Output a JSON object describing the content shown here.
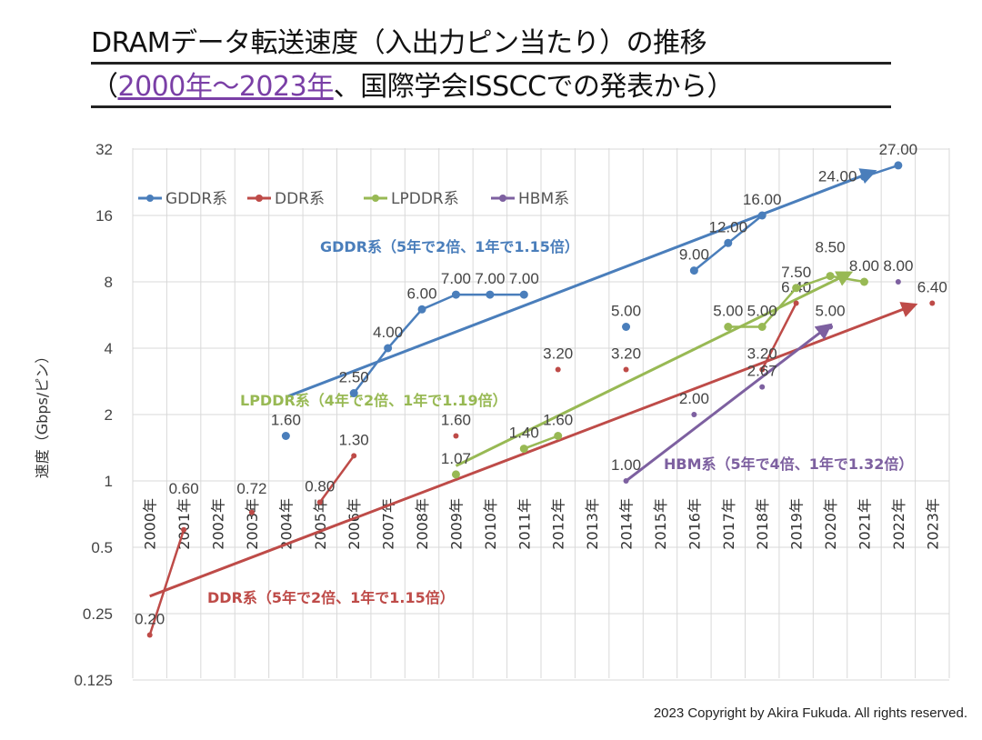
{
  "title_line1": "DRAMデータ転送速度（入出力ピン当たり）の推移",
  "title_line2_open": "（",
  "title_line2_range": "2000年～2023年",
  "title_line2_rest": "、国際学会ISSCCでの発表から）",
  "copyright": "2023 Copyright by Akira Fukuda. All rights reserved.",
  "chart_data": {
    "type": "line",
    "ylabel": "速度（Gbps/ピン）",
    "yscale": "log2",
    "ylim": [
      0.125,
      32
    ],
    "yticks": [
      "0.125",
      "0.25",
      "0.5",
      "1",
      "2",
      "4",
      "8",
      "16",
      "32"
    ],
    "ytick_values": [
      0.125,
      0.25,
      0.5,
      1,
      2,
      4,
      8,
      16,
      32
    ],
    "categories": [
      "2000年",
      "2001年",
      "2002年",
      "2003年",
      "2004年",
      "2005年",
      "2006年",
      "2007年",
      "2008年",
      "2009年",
      "2010年",
      "2011年",
      "2012年",
      "2013年",
      "2014年",
      "2015年",
      "2016年",
      "2017年",
      "2018年",
      "2019年",
      "2020年",
      "2021年",
      "2022年",
      "2023年"
    ],
    "grid": true,
    "legend_position": "top-left",
    "series": [
      {
        "name": "GDDR系",
        "color": "#4a7ebb",
        "groups": [
          [
            {
              "x": 2004,
              "y": 1.6,
              "label": "1.60"
            }
          ],
          [
            {
              "x": 2006,
              "y": 2.5,
              "label": "2.50"
            },
            {
              "x": 2007,
              "y": 4.0,
              "label": "4.00"
            },
            {
              "x": 2008,
              "y": 6.0,
              "label": "6.00"
            },
            {
              "x": 2009,
              "y": 7.0,
              "label": "7.00"
            },
            {
              "x": 2010,
              "y": 7.0,
              "label": "7.00"
            },
            {
              "x": 2011,
              "y": 7.0,
              "label": "7.00"
            }
          ],
          [
            {
              "x": 2014,
              "y": 5.0,
              "label": "5.00"
            }
          ],
          [
            {
              "x": 2016,
              "y": 9.0,
              "label": "9.00"
            },
            {
              "x": 2017,
              "y": 12.0,
              "label": "12.00"
            },
            {
              "x": 2018,
              "y": 16.0,
              "label": "16.00"
            }
          ],
          [
            {
              "x": 2021,
              "y": 24.0,
              "label": "24.00"
            },
            {
              "x": 2022,
              "y": 27.0,
              "label": "27.00"
            }
          ]
        ]
      },
      {
        "name": "DDR系",
        "color": "#be4b48",
        "groups": [
          [
            {
              "x": 2000,
              "y": 0.2,
              "label": "0.20"
            },
            {
              "x": 2001,
              "y": 0.6,
              "label": "0.60"
            }
          ],
          [
            {
              "x": 2003,
              "y": 0.72,
              "label": "0.72"
            }
          ],
          [
            {
              "x": 2005,
              "y": 0.8,
              "label": "0.80"
            },
            {
              "x": 2006,
              "y": 1.3,
              "label": "1.30"
            }
          ],
          [
            {
              "x": 2009,
              "y": 1.6,
              "label": "1.60"
            }
          ],
          [
            {
              "x": 2012,
              "y": 3.2,
              "label": "3.20"
            }
          ],
          [
            {
              "x": 2014,
              "y": 3.2,
              "label": "3.20"
            }
          ],
          [
            {
              "x": 2018,
              "y": 3.2,
              "label": "3.20"
            },
            {
              "x": 2019,
              "y": 6.4,
              "label": "6.40"
            }
          ],
          [
            {
              "x": 2023,
              "y": 6.4,
              "label": "6.40"
            }
          ]
        ]
      },
      {
        "name": "LPDDR系",
        "color": "#98b954",
        "groups": [
          [
            {
              "x": 2009,
              "y": 1.07,
              "label": "1.07"
            }
          ],
          [
            {
              "x": 2011,
              "y": 1.4,
              "label": "1.40"
            },
            {
              "x": 2012,
              "y": 1.6,
              "label": "1.60"
            }
          ],
          [
            {
              "x": 2017,
              "y": 5.0,
              "label": "5.00"
            },
            {
              "x": 2018,
              "y": 5.0,
              "label": "5.00"
            },
            {
              "x": 2019,
              "y": 7.5,
              "label": "7.50"
            },
            {
              "x": 2020,
              "y": 8.5,
              "label": "8.50"
            },
            {
              "x": 2021,
              "y": 8.0,
              "label": "8.00"
            }
          ]
        ]
      },
      {
        "name": "HBM系",
        "color": "#7d60a0",
        "groups": [
          [
            {
              "x": 2014,
              "y": 1.0,
              "label": "1.00"
            }
          ],
          [
            {
              "x": 2016,
              "y": 2.0,
              "label": "2.00"
            }
          ],
          [
            {
              "x": 2018,
              "y": 2.67,
              "label": "2.67"
            }
          ],
          [
            {
              "x": 2020,
              "y": 5.0,
              "label": "5.00"
            }
          ],
          [
            {
              "x": 2022,
              "y": 8.0,
              "label": "8.00"
            }
          ]
        ]
      }
    ],
    "trends": [
      {
        "series": "GDDR系",
        "label": "GDDR系（5年で2倍、1年で1.15倍）",
        "from": [
          2004,
          2.4
        ],
        "to": [
          2021.3,
          25.4
        ]
      },
      {
        "series": "DDR系",
        "label": "DDR系（5年で2倍、1年で1.15倍）",
        "from": [
          2000,
          0.3
        ],
        "to": [
          2022.5,
          6.3
        ]
      },
      {
        "series": "LPDDR系",
        "label": "LPDDR系（4年で2倍、1年で1.19倍）",
        "from": [
          2009,
          1.17
        ],
        "to": [
          2020.6,
          8.8
        ]
      },
      {
        "series": "HBM系",
        "label": "HBM系（5年で4倍、1年で1.32倍）",
        "from": [
          2014,
          1.0
        ],
        "to": [
          2020,
          5.1
        ]
      }
    ]
  }
}
